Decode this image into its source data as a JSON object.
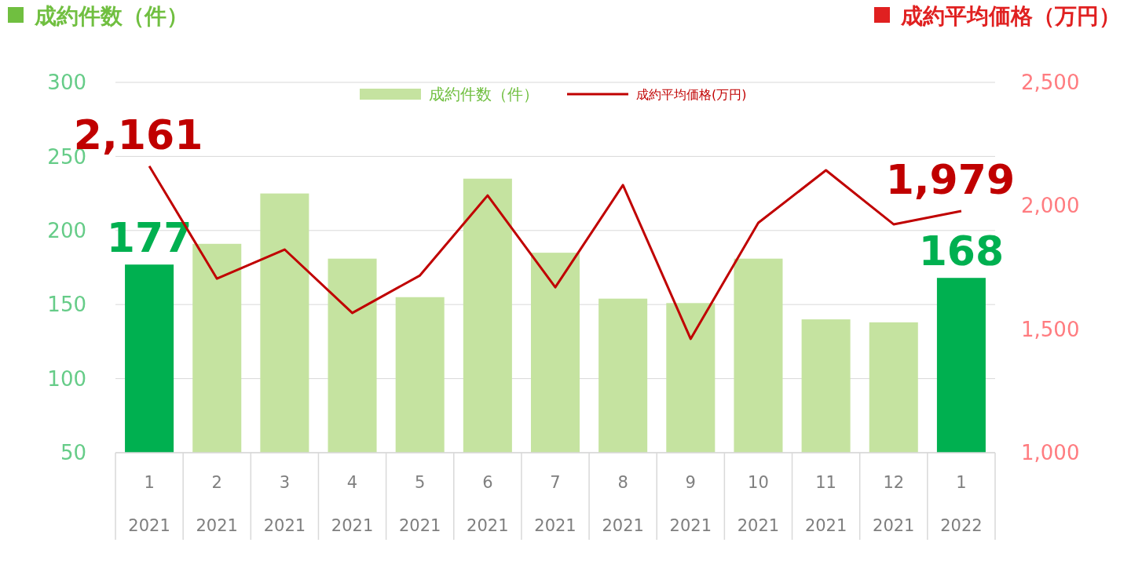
{
  "chart_data": {
    "type": "bar",
    "ylabel": "成約件数（件）",
    "y2label": "成約平均価格（万円）",
    "categories": [
      "1\n2021",
      "2\n2021",
      "3\n2021",
      "4\n2021",
      "5\n2021",
      "6\n2021",
      "7\n2021",
      "8\n2021",
      "9\n2021",
      "10\n2021",
      "11\n2021",
      "12\n2021",
      "1\n2022"
    ],
    "series": [
      {
        "name": "成約件数（件）",
        "color": "#c5e3a0",
        "colors": [
          "#00b050",
          "#c5e3a0",
          "#c5e3a0",
          "#c5e3a0",
          "#c5e3a0",
          "#c5e3a0",
          "#c5e3a0",
          "#c5e3a0",
          "#c5e3a0",
          "#c5e3a0",
          "#c5e3a0",
          "#c5e3a0",
          "#00b050"
        ],
        "values": [
          177,
          191,
          225,
          181,
          155,
          235,
          185,
          154,
          151,
          181,
          140,
          138,
          168
        ],
        "value_labels": [
          "177",
          null,
          null,
          null,
          null,
          null,
          null,
          null,
          null,
          null,
          null,
          null,
          "168"
        ]
      },
      {
        "name": "成約平均価格(万円)",
        "type": "line",
        "axis": "y2",
        "color": "#c00000",
        "values": [
          2161,
          1705,
          1823,
          1566,
          1718,
          2042,
          1670,
          2084,
          1461,
          1931,
          2144,
          1925,
          1979
        ],
        "value_labels": [
          "2,161",
          null,
          null,
          null,
          null,
          null,
          null,
          null,
          null,
          null,
          null,
          null,
          "1,979"
        ]
      }
    ],
    "ylim": [
      50,
      300
    ],
    "yticks": [
      50,
      100,
      150,
      200,
      250,
      300
    ],
    "y2lim": [
      1000,
      2500
    ],
    "y2ticks": [
      {
        "value": 1000,
        "label": "1,000"
      },
      {
        "value": 1500,
        "label": "1,500"
      },
      {
        "value": 2000,
        "label": "2,000"
      },
      {
        "value": 2500,
        "label": "2,500"
      }
    ],
    "grid": "y",
    "legend": "top"
  }
}
